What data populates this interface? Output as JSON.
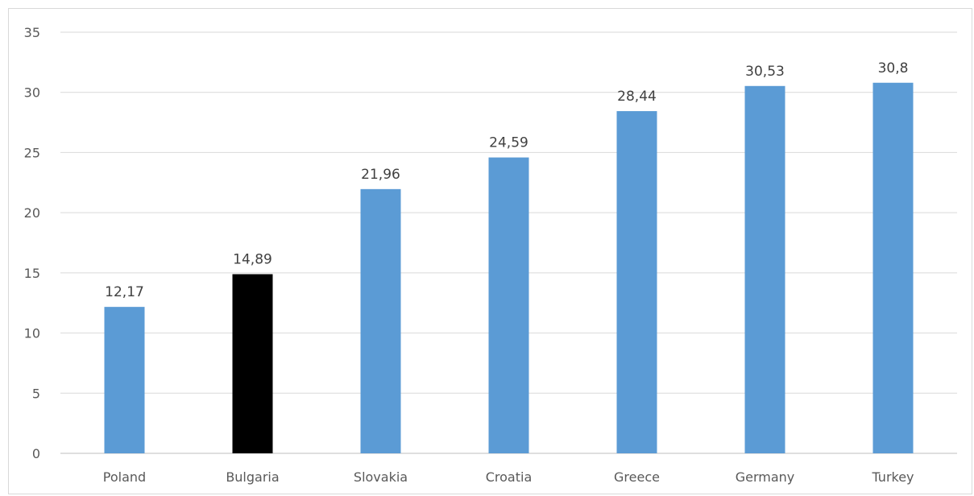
{
  "chart_data": {
    "type": "bar",
    "categories": [
      "Poland",
      "Bulgaria",
      "Slovakia",
      "Croatia",
      "Greece",
      "Germany",
      "Turkey"
    ],
    "values": [
      12.17,
      14.89,
      21.96,
      24.59,
      28.44,
      30.53,
      30.8
    ],
    "data_labels": [
      "12,17",
      "14,89",
      "21,96",
      "24,59",
      "28,44",
      "30,53",
      "30,8"
    ],
    "bar_colors": [
      "#5b9bd5",
      "#000000",
      "#5b9bd5",
      "#5b9bd5",
      "#5b9bd5",
      "#5b9bd5",
      "#5b9bd5"
    ],
    "ylim": [
      0,
      35
    ],
    "yticks": [
      0,
      5,
      10,
      15,
      20,
      25,
      30,
      35
    ],
    "title": "",
    "xlabel": "",
    "ylabel": "",
    "grid": true,
    "legend": "none"
  }
}
